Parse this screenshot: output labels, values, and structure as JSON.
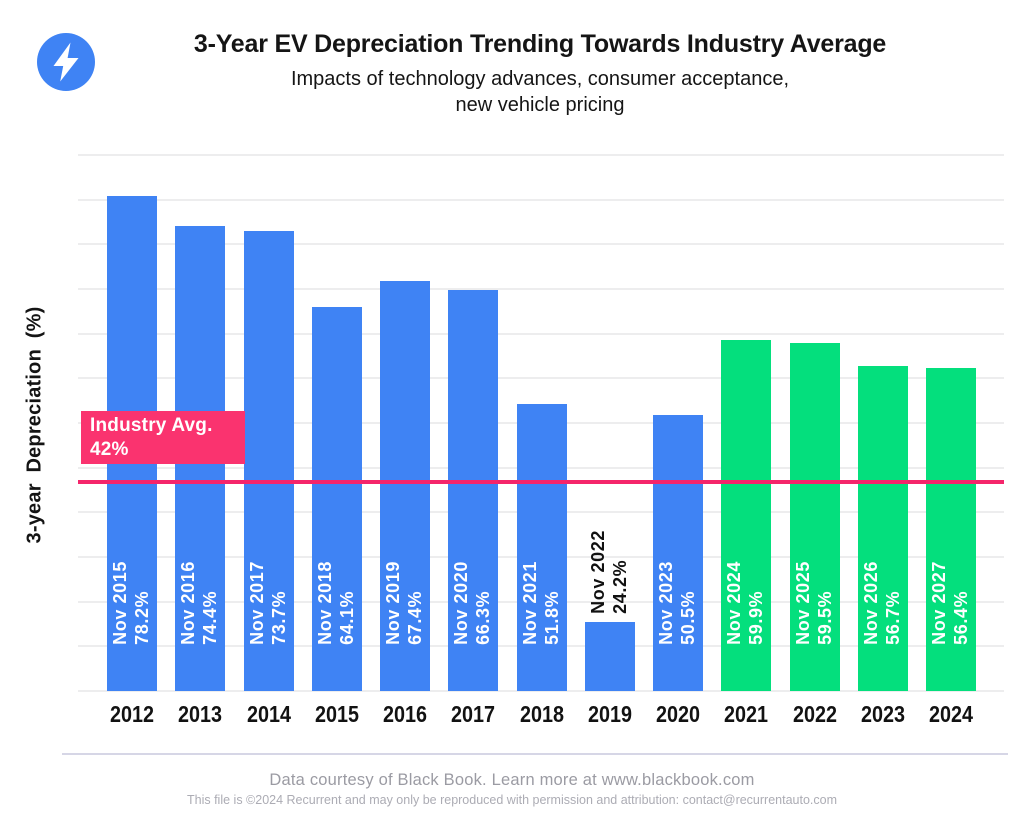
{
  "header": {
    "title": "3-Year EV Depreciation Trending Towards Industry Average",
    "subtitle_line1": "Impacts of technology advances, consumer acceptance,",
    "subtitle_line2": "new vehicle pricing"
  },
  "chart_data": {
    "type": "bar",
    "title": "3-Year EV Depreciation Trending Towards Industry Average",
    "y_axis_label": "3-year Depreciation (%)",
    "x_axis_ticks_visible": true,
    "y_axis_ticks_visible": false,
    "grid": "horizontal",
    "legend": "none",
    "ylim_est": [
      15.5,
      83.3
    ],
    "categories": [
      "2012",
      "2013",
      "2014",
      "2015",
      "2016",
      "2017",
      "2018",
      "2019",
      "2020",
      "2021",
      "2022",
      "2023",
      "2024"
    ],
    "bars": [
      {
        "category": "2012",
        "label": "Nov 2015",
        "display": "78.2%",
        "value": 78.2,
        "group": "actual",
        "label_style": "light"
      },
      {
        "category": "2013",
        "label": "Nov 2016",
        "display": "74.4%",
        "value": 74.4,
        "group": "actual",
        "label_style": "light"
      },
      {
        "category": "2014",
        "label": "Nov 2017",
        "display": "73.7%",
        "value": 73.7,
        "group": "actual",
        "label_style": "light"
      },
      {
        "category": "2015",
        "label": "Nov 2018",
        "display": "64.1%",
        "value": 64.1,
        "group": "actual",
        "label_style": "light"
      },
      {
        "category": "2016",
        "label": "Nov 2019",
        "display": "67.4%",
        "value": 67.4,
        "group": "actual",
        "label_style": "light"
      },
      {
        "category": "2017",
        "label": "Nov 2020",
        "display": "66.3%",
        "value": 66.3,
        "group": "actual",
        "label_style": "light"
      },
      {
        "category": "2018",
        "label": "Nov 2021",
        "display": "51.8%",
        "value": 51.8,
        "group": "actual",
        "label_style": "light"
      },
      {
        "category": "2019",
        "label": "Nov 2022",
        "display": "24.2%",
        "value": 24.2,
        "group": "actual",
        "label_style": "dark"
      },
      {
        "category": "2020",
        "label": "Nov 2023",
        "display": "50.5%",
        "value": 50.5,
        "group": "actual",
        "label_style": "light"
      },
      {
        "category": "2021",
        "label": "Nov 2024",
        "display": "59.9%",
        "value": 59.9,
        "group": "forecast",
        "label_style": "light"
      },
      {
        "category": "2022",
        "label": "Nov 2025",
        "display": "59.5%",
        "value": 59.5,
        "group": "forecast",
        "label_style": "light"
      },
      {
        "category": "2023",
        "label": "Nov 2026",
        "display": "56.7%",
        "value": 56.7,
        "group": "forecast",
        "label_style": "light"
      },
      {
        "category": "2024",
        "label": "Nov 2027",
        "display": "56.4%",
        "value": 56.4,
        "group": "forecast",
        "label_style": "light"
      }
    ],
    "reference_line": {
      "value": 42,
      "label_line1": "Industry Avg.",
      "label_line2": "42%"
    },
    "colors": {
      "actual": "#3F83F4",
      "forecast": "#04DF7D",
      "reference_line": "#F5256B",
      "reference_box": "#FA336F",
      "gridline": "#EDEDEE",
      "label_light": "#FFFFFF",
      "label_dark": "#111111"
    }
  },
  "footer": {
    "line1": "Data courtesy of Black Book. Learn more at www.blackbook.com",
    "line2": "This file is ©2024 Recurrent and may only be reproduced with permission and attribution: contact@recurrentauto.com"
  }
}
